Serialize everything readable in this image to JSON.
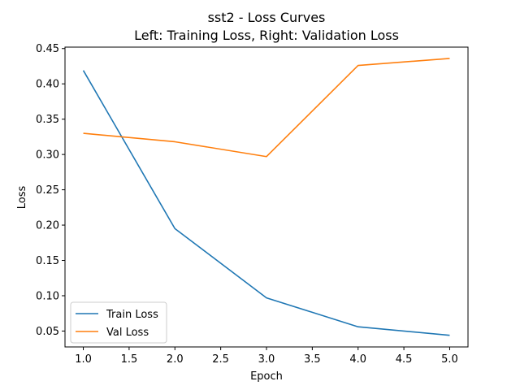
{
  "chart_data": {
    "type": "line",
    "title": "sst2 - Loss Curves",
    "subtitle": "Left: Training Loss, Right: Validation Loss",
    "xlabel": "Epoch",
    "ylabel": "Loss",
    "xlim": [
      0.8,
      5.2
    ],
    "ylim": [
      0.0275,
      0.452
    ],
    "xticks": [
      1.0,
      1.5,
      2.0,
      2.5,
      3.0,
      3.5,
      4.0,
      4.5,
      5.0
    ],
    "xtick_labels": [
      "1.0",
      "1.5",
      "2.0",
      "2.5",
      "3.0",
      "3.5",
      "4.0",
      "4.5",
      "5.0"
    ],
    "yticks": [
      0.05,
      0.1,
      0.15,
      0.2,
      0.25,
      0.3,
      0.35,
      0.4,
      0.45
    ],
    "ytick_labels": [
      "0.05",
      "0.10",
      "0.15",
      "0.20",
      "0.25",
      "0.30",
      "0.35",
      "0.40",
      "0.45"
    ],
    "grid": false,
    "legend_position": "lower-left",
    "x": [
      1,
      2,
      3,
      4,
      5
    ],
    "series": [
      {
        "name": "Train Loss",
        "color": "#1f77b4",
        "values": [
          0.419,
          0.195,
          0.097,
          0.056,
          0.044
        ]
      },
      {
        "name": "Val Loss",
        "color": "#ff7f0e",
        "values": [
          0.33,
          0.318,
          0.297,
          0.426,
          0.436
        ]
      }
    ]
  }
}
